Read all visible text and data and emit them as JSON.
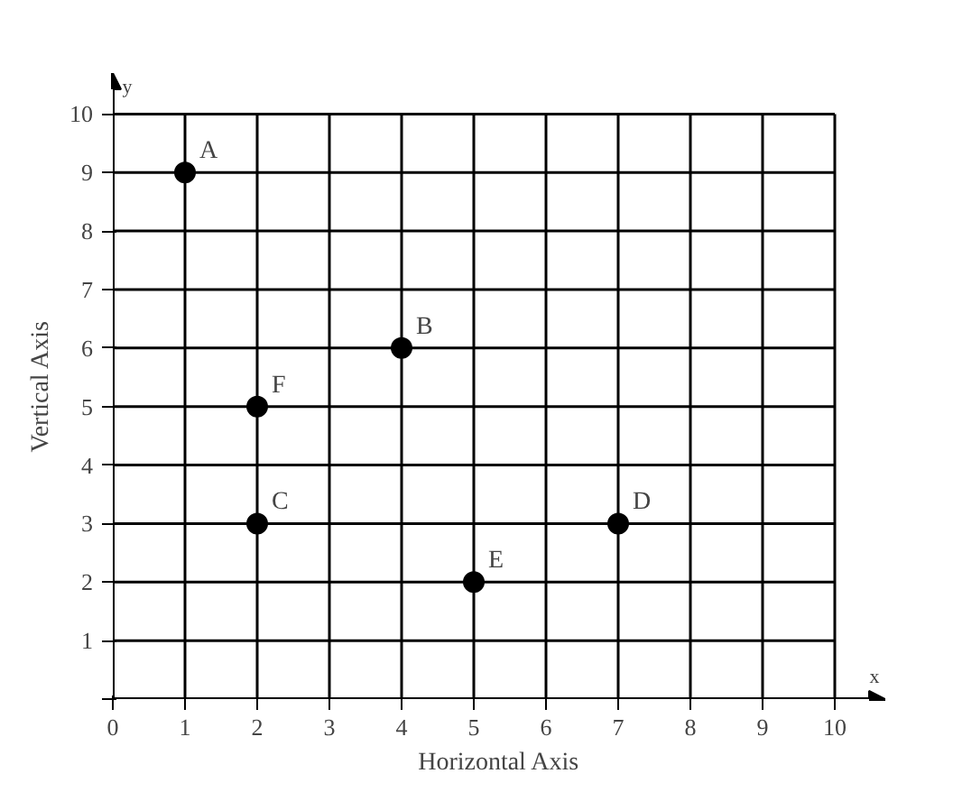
{
  "chart_data": {
    "type": "scatter",
    "xlabel": "Horizontal Axis",
    "ylabel": "Vertical Axis",
    "x": [
      1,
      4,
      2,
      7,
      5,
      2
    ],
    "series": [
      {
        "color": "#000000",
        "values": [
          9,
          6,
          3,
          3,
          2,
          5
        ]
      }
    ],
    "annotations": [
      {
        "text": "A",
        "x": 1,
        "y": 9
      },
      {
        "text": "B",
        "x": 4,
        "y": 6
      },
      {
        "text": "C",
        "x": 2,
        "y": 3
      },
      {
        "text": "D",
        "x": 7,
        "y": 3
      },
      {
        "text": "E",
        "x": 5,
        "y": 2
      },
      {
        "text": "F",
        "x": 2,
        "y": 5
      },
      "x",
      "y"
    ],
    "xlim": [
      0,
      10.7
    ],
    "ylim": [
      0,
      10.7
    ],
    "xticks": [
      0,
      1,
      2,
      3,
      4,
      5,
      6,
      7,
      8,
      9,
      10
    ],
    "yticks": [
      {
        "value": 0,
        "label": null
      },
      1,
      2,
      3,
      4,
      5,
      6,
      7,
      8,
      9,
      10
    ],
    "grid": true,
    "marker": "circle"
  }
}
